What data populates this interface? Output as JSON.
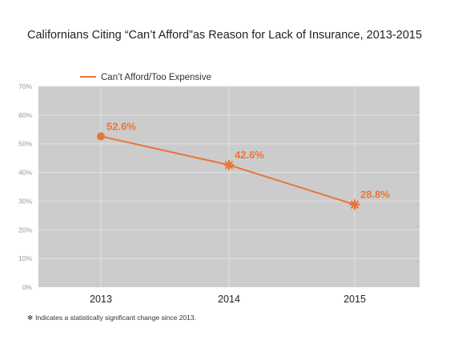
{
  "chart_data": {
    "type": "line",
    "title": "Californians Citing “Can’t Afford”as Reason for Lack of Insurance, 2013-2015",
    "categories": [
      "2013",
      "2014",
      "2015"
    ],
    "series": [
      {
        "name": "Can’t Afford/Too Expensive",
        "values": [
          52.6,
          42.6,
          28.8
        ],
        "labels": [
          "52.6%",
          "42.6%",
          "28.8%"
        ],
        "markers": [
          "circle",
          "asterisk",
          "asterisk"
        ],
        "color": "#e8753a"
      }
    ],
    "ylim": [
      0,
      70
    ],
    "yticks": [
      0,
      10,
      20,
      30,
      40,
      50,
      60,
      70
    ],
    "ytick_labels": [
      "0%",
      "10%",
      "20%",
      "30%",
      "40%",
      "50%",
      "60%",
      "70%"
    ],
    "grid": true,
    "legend_position": "top-left",
    "plot_background": "#cccccc"
  },
  "footnote": {
    "symbol": "✻",
    "text": "Indicates a statistically significant change since 2013."
  }
}
